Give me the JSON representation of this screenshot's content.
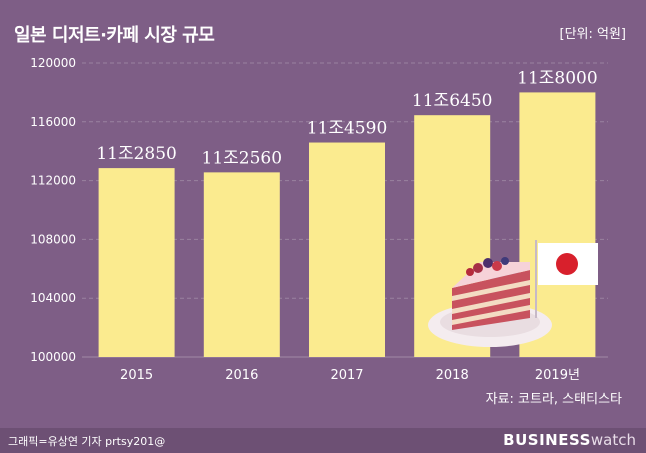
{
  "header": {
    "title": "일본 디저트·카페 시장 규모",
    "unit": "[단위: 억원]"
  },
  "source": "자료: 코트라, 스태티스타",
  "footer": {
    "credit": "그래픽=유상연 기자 prtsy201@",
    "brand_bold": "BUSINESS",
    "brand_light": "watch"
  },
  "colors": {
    "background": "#7e5e86",
    "bar": "#fbeb8f",
    "grid": "#9a82a0",
    "text": "#ffffff"
  },
  "chart_data": {
    "type": "bar",
    "title": "일본 디저트·카페 시장 규모",
    "categories": [
      "2015",
      "2016",
      "2017",
      "2018",
      "2019년"
    ],
    "values": [
      112850,
      112560,
      114590,
      116450,
      118000
    ],
    "data_labels": [
      "11조2850",
      "11조2560",
      "11조4590",
      "11조6450",
      "11조8000"
    ],
    "yticks": [
      100000,
      104000,
      108000,
      112000,
      116000,
      120000
    ],
    "ylim": [
      100000,
      120000
    ],
    "xlabel": "",
    "ylabel": "억원",
    "grid": true,
    "legend": "none"
  }
}
